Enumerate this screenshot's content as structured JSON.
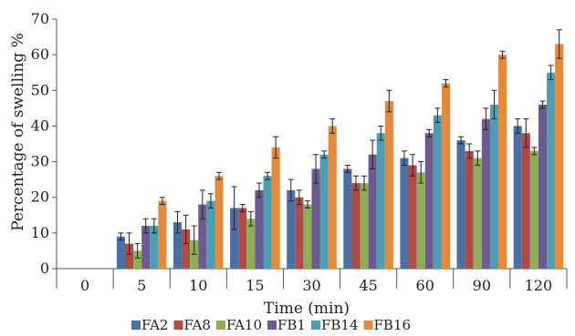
{
  "chart_data": {
    "type": "bar",
    "title": "",
    "xlabel": "Time (min)",
    "ylabel": "Percentage of swelling %",
    "ylim": [
      0,
      70
    ],
    "yticks": [
      0,
      10,
      20,
      30,
      40,
      50,
      60,
      70
    ],
    "grid": false,
    "legend_position": "bottom",
    "categories": [
      "0",
      "5",
      "10",
      "15",
      "30",
      "45",
      "60",
      "90",
      "120"
    ],
    "series": [
      {
        "name": "FA2",
        "color": "#4a6fa5",
        "values": [
          0,
          9,
          13,
          17,
          22,
          28,
          31,
          36,
          40
        ],
        "errors": [
          0,
          1,
          3,
          6,
          3,
          1,
          2,
          1,
          2
        ]
      },
      {
        "name": "FA8",
        "color": "#b04a48",
        "values": [
          0,
          7,
          11,
          17,
          20,
          24,
          29,
          33,
          38
        ],
        "errors": [
          0,
          3,
          4,
          1,
          2,
          2,
          3,
          2,
          4
        ]
      },
      {
        "name": "FA10",
        "color": "#8fad52",
        "values": [
          0,
          5,
          8,
          14,
          18,
          24,
          27,
          31,
          33
        ],
        "errors": [
          0,
          2,
          4,
          2,
          1,
          2,
          3,
          2,
          1
        ]
      },
      {
        "name": "FB1",
        "color": "#6e5a92",
        "values": [
          0,
          12,
          18,
          22,
          28,
          32,
          38,
          42,
          46
        ],
        "errors": [
          0,
          2,
          4,
          2,
          4,
          4,
          1,
          3,
          1
        ]
      },
      {
        "name": "FB14",
        "color": "#4b9fb5",
        "values": [
          0,
          12,
          19,
          26,
          32,
          38,
          43,
          46,
          55
        ],
        "errors": [
          0,
          2,
          2,
          1,
          1,
          2,
          2,
          4,
          2
        ]
      },
      {
        "name": "FB16",
        "color": "#e58a3c",
        "values": [
          0,
          19,
          26,
          34,
          40,
          47,
          52,
          60,
          63
        ],
        "errors": [
          0,
          1,
          1,
          3,
          2,
          3,
          1,
          1,
          4
        ]
      }
    ]
  }
}
